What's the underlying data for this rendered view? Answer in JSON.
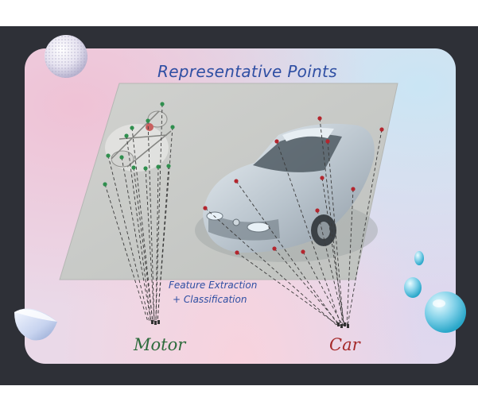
{
  "title": "Representative Points",
  "process": {
    "line1": "Feature Extraction",
    "line2": "+ Classification"
  },
  "classes": [
    {
      "label": "Motor",
      "color": "#2d6b3c",
      "point_color": "#2f8f4e"
    },
    {
      "label": "Car",
      "color": "#a52a2a",
      "point_color": "#b3262e"
    }
  ],
  "colors": {
    "frame": "#2e3037",
    "title": "#2f4fa3",
    "image_plane": "#c6c8c6"
  }
}
